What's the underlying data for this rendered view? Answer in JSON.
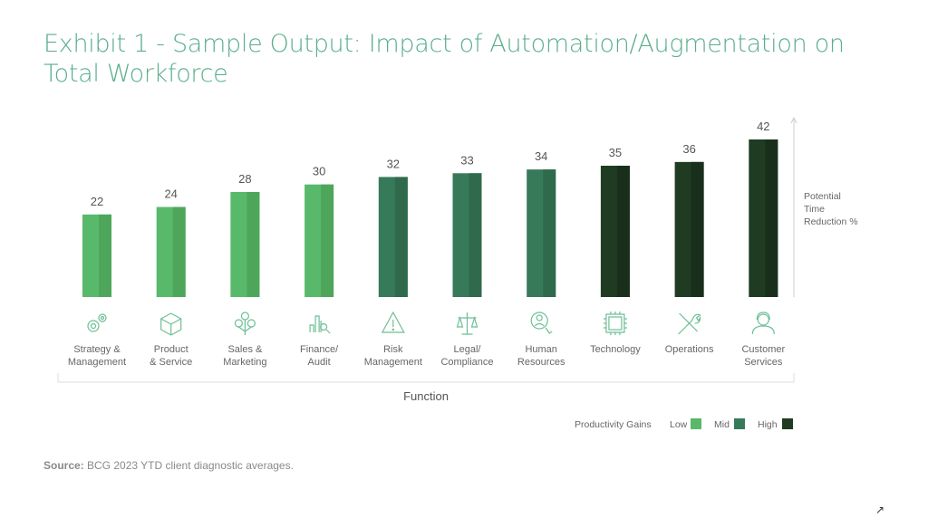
{
  "title": "Exhibit 1 - Sample Output: Impact of Automation/Augmentation on Total Workforce",
  "source_label": "Source:",
  "source_text": "BCG 2023 YTD client diagnostic averages.",
  "expand_icon": "arrow-up-right-icon",
  "colors": {
    "Low": "#58b96a",
    "Mid": "#377a5a",
    "High": "#1f3c22",
    "title": "#5aae8c"
  },
  "chart_data": {
    "type": "bar",
    "title": "Exhibit 1 - Sample Output: Impact of Automation/Augmentation on Total Workforce",
    "xlabel": "Function",
    "ylabel": "Potential Time Reduction %",
    "ylabel_lines": [
      "Potential",
      "Time",
      "Reduction %"
    ],
    "categories": [
      [
        "Strategy &",
        "Management"
      ],
      [
        "Product",
        "& Service"
      ],
      [
        "Sales &",
        "Marketing"
      ],
      [
        "Finance/",
        "Audit"
      ],
      [
        "Risk",
        "Management"
      ],
      [
        "Legal/",
        "Compliance"
      ],
      [
        "Human",
        "Resources"
      ],
      [
        "Technology"
      ],
      [
        "Operations"
      ],
      [
        "Customer",
        "Services"
      ]
    ],
    "icons": [
      "gears-icon",
      "box-icon",
      "people-tree-icon",
      "bar-chart-search-icon",
      "warning-icon",
      "scales-icon",
      "person-search-icon",
      "chip-icon",
      "tools-icon",
      "headset-person-icon"
    ],
    "values": [
      22,
      24,
      28,
      30,
      32,
      33,
      34,
      35,
      36,
      42
    ],
    "gain_level": [
      "Low",
      "Low",
      "Low",
      "Low",
      "Mid",
      "Mid",
      "Mid",
      "High",
      "High",
      "High"
    ],
    "ylim": [
      0,
      45
    ],
    "grid": false,
    "legend": {
      "title": "Productivity Gains",
      "entries": [
        "Low",
        "Mid",
        "High"
      ],
      "placement": "bottom-right"
    }
  }
}
